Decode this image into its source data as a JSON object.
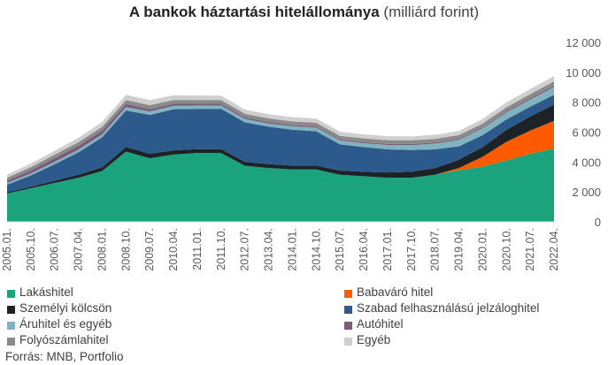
{
  "chart_data": {
    "type": "area",
    "stacked": true,
    "title": "A bankok háztartási hitelállománya",
    "title_unit": "(milliárd forint)",
    "ylim": [
      0,
      12000
    ],
    "yticks": [
      "0",
      "2 000",
      "4 000",
      "6 000",
      "8 000",
      "10 000",
      "12 000"
    ],
    "y_axis_position": "right",
    "grid": false,
    "legend_position": "bottom",
    "x": [
      "2005.01.",
      "2005.10.",
      "2006.07.",
      "2007.04.",
      "2008.01.",
      "2008.10.",
      "2009.07.",
      "2010.04.",
      "2011.01.",
      "2011.10.",
      "2012.07.",
      "2013.04.",
      "2014.01.",
      "2014.10.",
      "2015.07.",
      "2016.04.",
      "2017.01.",
      "2017.10.",
      "2018.07.",
      "2019.04.",
      "2020.01.",
      "2020.10.",
      "2021.07.",
      "2022.04."
    ],
    "series": [
      {
        "name": "Lakáshitel",
        "color": "#1aa37c",
        "values": [
          1900,
          2250,
          2600,
          2950,
          3400,
          4700,
          4250,
          4500,
          4600,
          4600,
          3750,
          3600,
          3500,
          3500,
          3150,
          3050,
          2950,
          2950,
          3150,
          3450,
          3700,
          4100,
          4550,
          4900
        ]
      },
      {
        "name": "Babaváró hitel",
        "color": "#ff5a00",
        "values": [
          0,
          0,
          0,
          0,
          0,
          0,
          0,
          0,
          0,
          0,
          0,
          0,
          0,
          0,
          0,
          0,
          0,
          0,
          0,
          150,
          650,
          1250,
          1550,
          1850
        ]
      },
      {
        "name": "Személyi kölcsön",
        "color": "#1c2326",
        "values": [
          80,
          100,
          150,
          200,
          250,
          300,
          300,
          280,
          260,
          260,
          260,
          260,
          260,
          260,
          280,
          300,
          350,
          400,
          450,
          550,
          650,
          800,
          950,
          1100
        ]
      },
      {
        "name": "Szabad felhasználású jelzáloghitel",
        "color": "#2d5a8c",
        "values": [
          500,
          750,
          1100,
          1500,
          2000,
          2450,
          2600,
          2750,
          2700,
          2700,
          2650,
          2500,
          2400,
          2300,
          1750,
          1650,
          1550,
          1450,
          1250,
          900,
          800,
          700,
          650,
          650
        ]
      },
      {
        "name": "Áruhitel és egyéb",
        "color": "#7fb3c0",
        "values": [
          120,
          140,
          160,
          180,
          200,
          230,
          230,
          230,
          220,
          220,
          220,
          220,
          230,
          240,
          250,
          260,
          290,
          330,
          380,
          430,
          450,
          470,
          480,
          520
        ]
      },
      {
        "name": "Autóhitel",
        "color": "#7a5a78",
        "values": [
          150,
          200,
          250,
          250,
          250,
          200,
          150,
          130,
          110,
          110,
          100,
          90,
          80,
          80,
          70,
          70,
          70,
          70,
          70,
          70,
          70,
          80,
          90,
          100
        ]
      },
      {
        "name": "Folyószámlahitel",
        "color": "#8a8a8a",
        "values": [
          200,
          220,
          230,
          250,
          260,
          270,
          270,
          260,
          260,
          260,
          250,
          250,
          250,
          250,
          250,
          250,
          250,
          250,
          250,
          250,
          260,
          260,
          270,
          280
        ]
      },
      {
        "name": "Egyéb",
        "color": "#cfcfcf",
        "values": [
          200,
          240,
          260,
          290,
          320,
          350,
          340,
          320,
          300,
          290,
          280,
          280,
          280,
          280,
          280,
          270,
          270,
          260,
          270,
          280,
          300,
          330,
          340,
          350
        ]
      }
    ]
  },
  "source": "Forrás: MNB, Portfolio"
}
